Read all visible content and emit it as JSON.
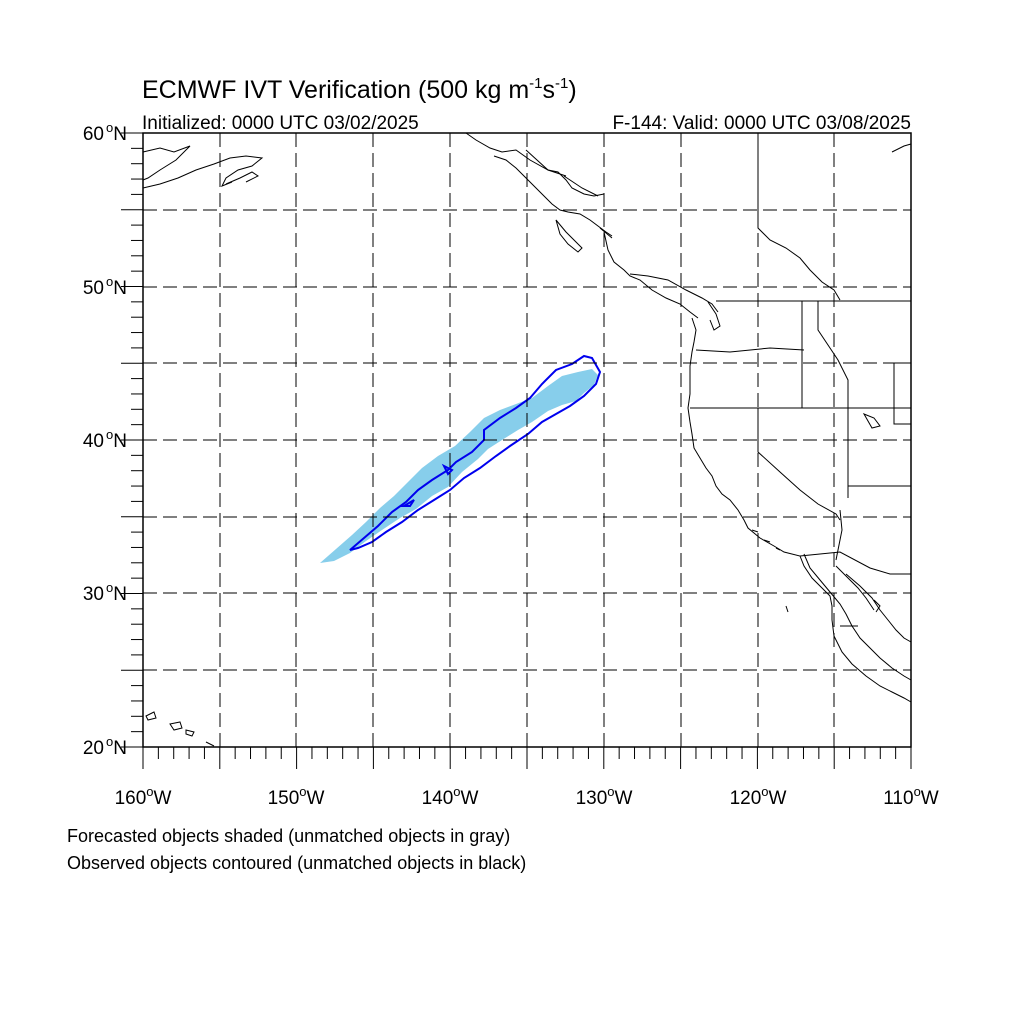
{
  "title": {
    "main": "ECMWF IVT Verification (500 kg m",
    "sup1": "-1",
    "mid": "s",
    "sup2": "-1",
    "end": ")"
  },
  "initialized": "Initialized: 0000 UTC 03/02/2025",
  "valid": "F-144: Valid: 0000 UTC 03/08/2025",
  "lat_labels": [
    {
      "deg": "60",
      "hemi": "N"
    },
    {
      "deg": "50",
      "hemi": "N"
    },
    {
      "deg": "40",
      "hemi": "N"
    },
    {
      "deg": "30",
      "hemi": "N"
    },
    {
      "deg": "20",
      "hemi": "N"
    }
  ],
  "lon_labels": [
    {
      "deg": "160",
      "hemi": "W"
    },
    {
      "deg": "150",
      "hemi": "W"
    },
    {
      "deg": "140",
      "hemi": "W"
    },
    {
      "deg": "130",
      "hemi": "W"
    },
    {
      "deg": "120",
      "hemi": "W"
    },
    {
      "deg": "110",
      "hemi": "W"
    }
  ],
  "notes": [
    "Forecasted objects shaded (unmatched objects in gray)",
    "Observed objects contoured (unmatched objects in black)"
  ],
  "colors": {
    "forecast_fill": "#87ceeb",
    "observed_contour": "#0000ee",
    "coast": "#000000",
    "grid": "#000000"
  }
}
